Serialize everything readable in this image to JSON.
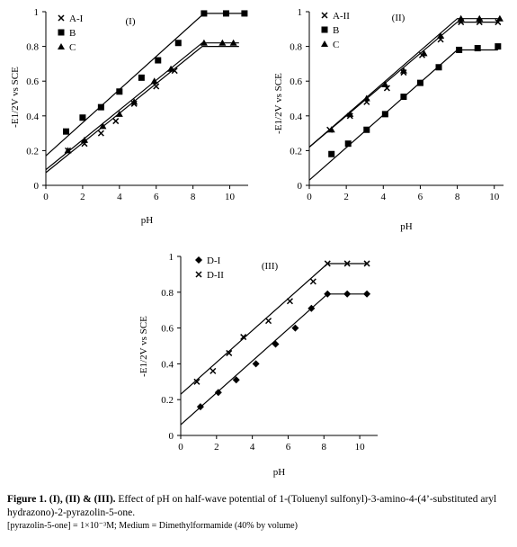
{
  "chart_data": [
    {
      "type": "scatter",
      "panel_label": "(I)",
      "xlabel": "pH",
      "ylabel": "-E1/2V vs SCE",
      "xlim": [
        0,
        11
      ],
      "ylim": [
        0,
        1
      ],
      "xticks": [
        "0",
        "2",
        "4",
        "6",
        "8",
        "10"
      ],
      "yticks": [
        "0",
        "0.2",
        "0.4",
        "0.6",
        "0.8",
        "1"
      ],
      "legend_position": "top-left",
      "series": [
        {
          "name": "A-I",
          "marker": "x",
          "x": [
            1.2,
            2.1,
            3,
            3.8,
            4.8,
            6,
            7
          ],
          "y": [
            0.2,
            0.24,
            0.3,
            0.37,
            0.47,
            0.57,
            0.66
          ],
          "fit": {
            "x": [
              0,
              8.5,
              10.5
            ],
            "y": [
              0.073,
              0.8,
              0.8
            ]
          }
        },
        {
          "name": "B",
          "marker": "square",
          "x": [
            1.1,
            2,
            3,
            4,
            5.2,
            6.1,
            7.2,
            8.6,
            9.8,
            10.8
          ],
          "y": [
            0.31,
            0.39,
            0.45,
            0.54,
            0.62,
            0.72,
            0.82,
            0.99,
            0.99,
            0.99
          ],
          "fit": {
            "x": [
              0,
              8.6,
              10.8
            ],
            "y": [
              0.17,
              0.99,
              0.99
            ]
          }
        },
        {
          "name": "C",
          "marker": "triangle",
          "x": [
            1.2,
            2.1,
            3.1,
            4,
            4.8,
            5.9,
            6.8,
            8.6,
            9.6,
            10.2
          ],
          "y": [
            0.2,
            0.26,
            0.34,
            0.41,
            0.48,
            0.6,
            0.67,
            0.82,
            0.82,
            0.82
          ],
          "fit": {
            "x": [
              0,
              8.5,
              10.5
            ],
            "y": [
              0.09,
              0.82,
              0.82
            ]
          }
        }
      ]
    },
    {
      "type": "scatter",
      "panel_label": "(II)",
      "xlabel": "pH",
      "ylabel": "-E1/2V vs SCE",
      "xlim": [
        0,
        10.5
      ],
      "ylim": [
        0,
        1
      ],
      "xticks": [
        "0",
        "2",
        "4",
        "6",
        "8",
        "10"
      ],
      "yticks": [
        "0",
        "0.2",
        "0.4",
        "0.6",
        "0.8",
        "1"
      ],
      "legend_position": "top-left",
      "series": [
        {
          "name": "A-II",
          "marker": "x",
          "x": [
            1.1,
            2.2,
            3.1,
            4.2,
            5.1,
            6.1,
            7.1,
            8.2,
            9.2,
            10.2
          ],
          "y": [
            0.32,
            0.4,
            0.48,
            0.56,
            0.65,
            0.75,
            0.84,
            0.94,
            0.94,
            0.94
          ],
          "fit": {
            "x": [
              0,
              8,
              10.2
            ],
            "y": [
              0.22,
              0.94,
              0.94
            ]
          }
        },
        {
          "name": "B",
          "marker": "square",
          "x": [
            1.2,
            2.1,
            3.1,
            4.1,
            5.1,
            6,
            7,
            8.1,
            9.1,
            10.2
          ],
          "y": [
            0.18,
            0.24,
            0.32,
            0.41,
            0.51,
            0.59,
            0.68,
            0.78,
            0.79,
            0.8
          ],
          "fit": {
            "x": [
              0,
              8,
              10.2
            ],
            "y": [
              0.03,
              0.78,
              0.78
            ]
          }
        },
        {
          "name": "C",
          "marker": "triangle",
          "x": [
            1.2,
            2.2,
            3.1,
            4.1,
            5.1,
            6.2,
            7.1,
            8.2,
            9.2,
            10.3
          ],
          "y": [
            0.32,
            0.41,
            0.5,
            0.58,
            0.66,
            0.76,
            0.86,
            0.96,
            0.96,
            0.96
          ],
          "fit": {
            "x": [
              0,
              8,
              10.2
            ],
            "y": [
              0.22,
              0.96,
              0.96
            ]
          }
        }
      ]
    },
    {
      "type": "scatter",
      "panel_label": "(III)",
      "xlabel": "pH",
      "ylabel": "-E1/2V vs SCE",
      "xlim": [
        0,
        11
      ],
      "ylim": [
        0,
        1
      ],
      "xticks": [
        "0",
        "2",
        "4",
        "6",
        "8",
        "10"
      ],
      "yticks": [
        "0",
        "0.2",
        "0.4",
        "0.6",
        "0.8",
        "1"
      ],
      "legend_position": "top-left",
      "series": [
        {
          "name": "D-I",
          "marker": "diamond",
          "x": [
            1.1,
            2.1,
            3.1,
            4.2,
            5.3,
            6.4,
            7.3,
            8.2,
            9.3,
            10.4
          ],
          "y": [
            0.16,
            0.24,
            0.31,
            0.4,
            0.51,
            0.6,
            0.71,
            0.79,
            0.79,
            0.79
          ],
          "fit": {
            "x": [
              0,
              8.2,
              10.4
            ],
            "y": [
              0.06,
              0.79,
              0.79
            ]
          }
        },
        {
          "name": "D-II",
          "marker": "x",
          "x": [
            0.9,
            1.8,
            2.7,
            3.5,
            4.9,
            6.1,
            7.4,
            8.2,
            9.3,
            10.4
          ],
          "y": [
            0.3,
            0.36,
            0.46,
            0.55,
            0.64,
            0.75,
            0.86,
            0.96,
            0.96,
            0.96
          ],
          "fit": {
            "x": [
              0,
              8.2,
              10.4
            ],
            "y": [
              0.23,
              0.96,
              0.96
            ]
          }
        }
      ]
    }
  ],
  "caption": {
    "label": "Figure 1. (I), (II) & (III).",
    "text": " Effect of pH on half-wave potential of 1-(Toluenyl sulfonyl)-3-amino-4-(4’-substituted aryl hydrazono)-2-pyrazolin-5-one.",
    "note": "[pyrazolin-5-one] = 1×10⁻³M; Medium = Dimethylformamide (40% by volume)"
  }
}
